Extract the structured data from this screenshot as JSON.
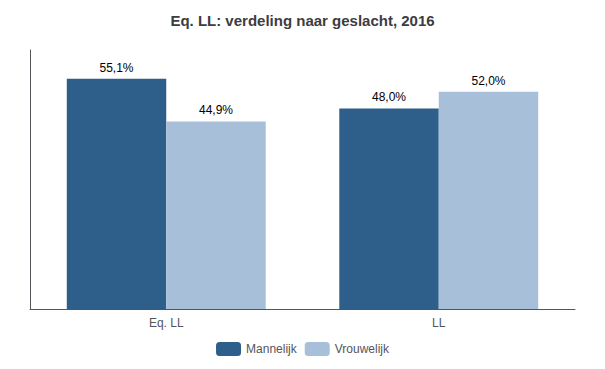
{
  "chart_data": {
    "type": "bar",
    "title": "Eq. LL: verdeling naar geslacht, 2016",
    "categories": [
      "Eq. LL",
      "LL"
    ],
    "series": [
      {
        "name": "Mannelijk",
        "color": "#2E5F8A",
        "values": [
          55.1,
          48.0
        ],
        "value_labels": [
          "55,1%",
          "48,0%"
        ]
      },
      {
        "name": "Vrouwelijk",
        "color": "#A8BFDA",
        "values": [
          44.9,
          52.0
        ],
        "value_labels": [
          "44,9%",
          "52,0%"
        ]
      }
    ],
    "ylim": [
      0,
      62
    ],
    "grid": false,
    "legend": "bottom",
    "data_labels": true,
    "tick_labels": "x"
  }
}
